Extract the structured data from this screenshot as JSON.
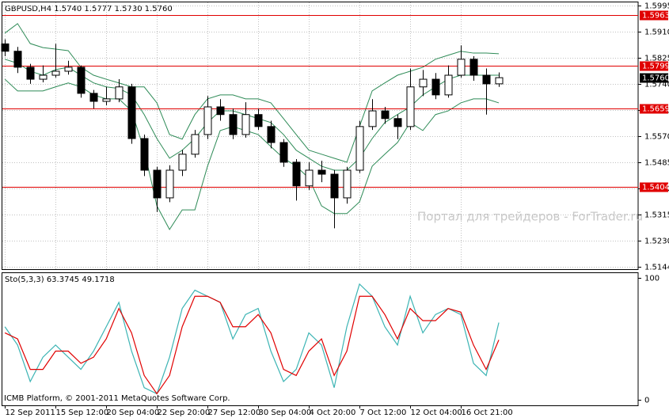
{
  "chart_data": [
    {
      "type": "candlestick",
      "title": "GBPUSD,H4  1.5740  1.5777  1.5730  1.5760",
      "open": [
        1.587,
        1.5846,
        1.5794,
        1.5755,
        1.5768,
        1.5781,
        1.5794,
        1.5709,
        1.5683,
        1.5691,
        1.573,
        1.5562,
        1.5459,
        1.5369,
        1.5459,
        1.5511,
        1.5575,
        1.5665,
        1.564,
        1.5575,
        1.564,
        1.5601,
        1.5549,
        1.5485,
        1.5408,
        1.5459,
        1.5446,
        1.5369,
        1.5459,
        1.5601,
        1.5652,
        1.5627,
        1.5601,
        1.573,
        1.5755,
        1.5704,
        1.5768,
        1.582,
        1.5768,
        1.574
      ],
      "high": [
        1.5885,
        1.586,
        1.5805,
        1.58,
        1.587,
        1.5815,
        1.58,
        1.572,
        1.573,
        1.5755,
        1.574,
        1.5575,
        1.547,
        1.5475,
        1.5525,
        1.559,
        1.57,
        1.569,
        1.566,
        1.568,
        1.566,
        1.562,
        1.556,
        1.5495,
        1.5485,
        1.549,
        1.546,
        1.547,
        1.562,
        1.569,
        1.5665,
        1.564,
        1.579,
        1.5785,
        1.5775,
        1.58,
        1.5865,
        1.583,
        1.579,
        1.5777
      ],
      "low": [
        1.583,
        1.5775,
        1.574,
        1.5745,
        1.576,
        1.577,
        1.5695,
        1.566,
        1.567,
        1.568,
        1.5545,
        1.544,
        1.5323,
        1.5355,
        1.544,
        1.55,
        1.556,
        1.562,
        1.556,
        1.5565,
        1.559,
        1.553,
        1.547,
        1.536,
        1.5395,
        1.542,
        1.527,
        1.535,
        1.545,
        1.559,
        1.561,
        1.556,
        1.559,
        1.57,
        1.569,
        1.5695,
        1.576,
        1.575,
        1.564,
        1.573
      ],
      "close": [
        1.5846,
        1.5794,
        1.5755,
        1.5768,
        1.5781,
        1.5794,
        1.5709,
        1.5683,
        1.5691,
        1.573,
        1.5562,
        1.5459,
        1.5369,
        1.5459,
        1.5511,
        1.5575,
        1.5665,
        1.564,
        1.5575,
        1.564,
        1.5601,
        1.5549,
        1.5485,
        1.5408,
        1.5459,
        1.5446,
        1.5369,
        1.5459,
        1.5601,
        1.5652,
        1.5627,
        1.5601,
        1.573,
        1.5755,
        1.5704,
        1.5768,
        1.582,
        1.5768,
        1.574,
        1.576
      ],
      "overlays": [
        {
          "color": "#2e8b57",
          "values": [
            1.5905,
            1.5936,
            1.5871,
            1.5858,
            1.5853,
            1.5848,
            1.5794,
            1.5768,
            1.5755,
            1.5743,
            1.573,
            1.573,
            1.5678,
            1.5575,
            1.556,
            1.564,
            1.5691,
            1.5704,
            1.5704,
            1.5691,
            1.5691,
            1.5678,
            1.5627,
            1.5575,
            1.5524,
            1.5511,
            1.5498,
            1.5485,
            1.5601,
            1.5717,
            1.5743,
            1.5768,
            1.5781,
            1.5794,
            1.582,
            1.5833,
            1.5846,
            1.584,
            1.584,
            1.5838
          ]
        },
        {
          "color": "#2e8b57",
          "values": [
            1.582,
            1.5807,
            1.5781,
            1.5768,
            1.5786,
            1.5794,
            1.5768,
            1.5743,
            1.573,
            1.5725,
            1.5704,
            1.564,
            1.5562,
            1.5498,
            1.5524,
            1.5562,
            1.5614,
            1.5652,
            1.5652,
            1.564,
            1.5627,
            1.5614,
            1.5575,
            1.5524,
            1.5498,
            1.5472,
            1.5459,
            1.5459,
            1.5498,
            1.5562,
            1.5614,
            1.564,
            1.5665,
            1.5704,
            1.573,
            1.5755,
            1.5768,
            1.5768,
            1.5768,
            1.5768
          ]
        },
        {
          "color": "#2e8b57",
          "values": [
            1.5755,
            1.5717,
            1.5717,
            1.5717,
            1.573,
            1.5743,
            1.573,
            1.5704,
            1.5691,
            1.5691,
            1.5652,
            1.5524,
            1.5343,
            1.5266,
            1.533,
            1.533,
            1.5472,
            1.5588,
            1.5601,
            1.5588,
            1.5575,
            1.5536,
            1.5498,
            1.5472,
            1.5433,
            1.5343,
            1.5318,
            1.5318,
            1.5356,
            1.5472,
            1.5511,
            1.5549,
            1.5614,
            1.5588,
            1.564,
            1.5652,
            1.5678,
            1.5691,
            1.5691,
            1.5678
          ]
        }
      ],
      "hlines": [
        {
          "value": 1.5963,
          "label": "1.5963"
        },
        {
          "value": 1.5799,
          "label": "1.5799"
        },
        {
          "value": 1.5659,
          "label": "1.5659"
        },
        {
          "value": 1.5404,
          "label": "1.5404"
        }
      ],
      "hline_color": "#e00000",
      "current_price": {
        "value": 1.576,
        "label": "1.5760"
      },
      "xlim": [
        -0.2,
        50
      ],
      "ylim": [
        1.5137,
        1.6005
      ],
      "yticks": [
        {
          "value": 1.5995,
          "label": "1.5995"
        },
        {
          "value": 1.591,
          "label": "1.5910"
        },
        {
          "value": 1.5825,
          "label": "1.5825"
        },
        {
          "value": 1.574,
          "label": "1.5740"
        },
        {
          "value": 1.5655,
          "label": "1.5655"
        },
        {
          "value": 1.557,
          "label": "1.5570"
        },
        {
          "value": 1.5485,
          "label": "1.5485"
        },
        {
          "value": 1.54,
          "label": "1.5400"
        },
        {
          "value": 1.5315,
          "label": "1.5315"
        },
        {
          "value": 1.523,
          "label": "1.5230"
        },
        {
          "value": 1.5144,
          "label": "1.5144"
        }
      ],
      "grid": true,
      "watermark": "Портал для трейдеров - ForTrader.ru"
    },
    {
      "type": "line",
      "title": "Sto(5,3,3) 63.3745 49.1718",
      "series": [
        {
          "color": "#3cb4b4",
          "values": [
            60,
            45,
            15,
            35,
            45,
            35,
            25,
            40,
            60,
            80,
            40,
            10,
            5,
            35,
            75,
            90,
            85,
            80,
            50,
            70,
            75,
            40,
            15,
            25,
            55,
            45,
            10,
            60,
            95,
            85,
            60,
            45,
            85,
            55,
            70,
            75,
            70,
            30,
            20,
            63.3745
          ]
        },
        {
          "color": "#e00000",
          "values": [
            55,
            50,
            25,
            25,
            40,
            40,
            30,
            35,
            50,
            75,
            55,
            20,
            5,
            20,
            60,
            85,
            85,
            80,
            60,
            60,
            70,
            55,
            25,
            20,
            40,
            50,
            20,
            40,
            85,
            85,
            70,
            50,
            75,
            65,
            65,
            75,
            72,
            45,
            25,
            49.1718
          ]
        }
      ],
      "xlim": [
        -0.2,
        50
      ],
      "ylim": [
        -4.5,
        104
      ],
      "yticks": [
        100,
        0
      ],
      "xticks": [
        {
          "value": 0,
          "label": "12 Sep 2011"
        },
        {
          "value": 4,
          "label": "15 Sep 12:00"
        },
        {
          "value": 8,
          "label": "20 Sep 04:00"
        },
        {
          "value": 12,
          "label": "22 Sep 20:00"
        },
        {
          "value": 16,
          "label": "27 Sep 12:00"
        },
        {
          "value": 20,
          "label": "30 Sep 04:00"
        },
        {
          "value": 24,
          "label": "4 Oct 20:00"
        },
        {
          "value": 28,
          "label": "7 Oct 12:00"
        },
        {
          "value": 32,
          "label": "12 Oct 04:00"
        },
        {
          "value": 36,
          "label": "16 Oct 21:00"
        }
      ],
      "footer": "ICMB Platform, © 2001-2011 MetaQuotes Software Corp."
    }
  ]
}
